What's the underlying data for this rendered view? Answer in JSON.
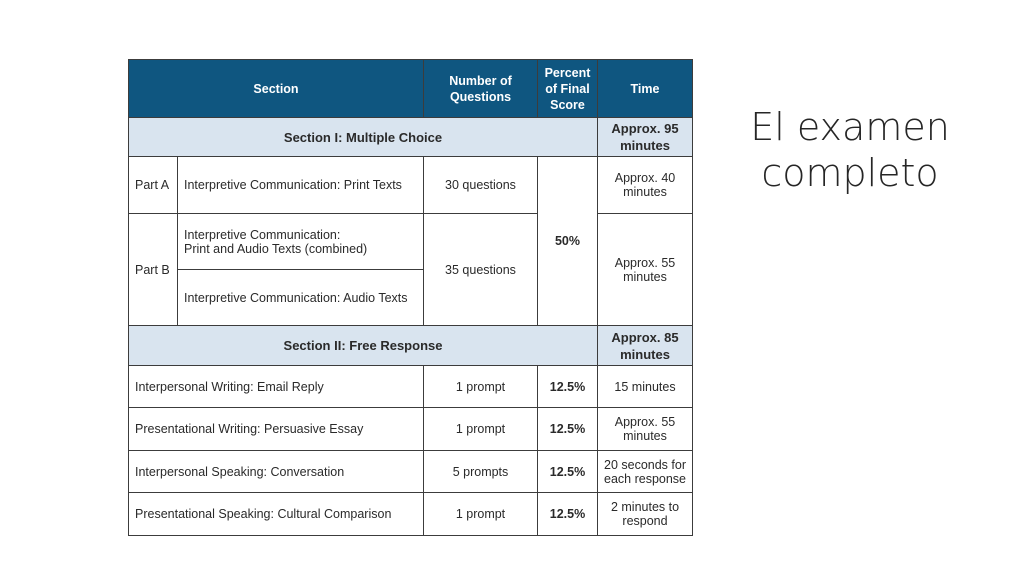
{
  "slide": {
    "title": "El examen\ncompleto"
  },
  "table": {
    "headers": {
      "section": "Section",
      "number_line1": "Number of",
      "number_line2": "Questions",
      "percent_line1": "Percent",
      "percent_line2": "of Final",
      "percent_line3": "Score",
      "time": "Time"
    },
    "section1": {
      "label": "Section I: Multiple Choice",
      "time_line1": "Approx. 95",
      "time_line2": "minutes",
      "percent": "50%",
      "part_a": {
        "part": "Part A",
        "task": "Interpretive Communication: Print Texts",
        "count": "30 questions",
        "time_line1": "Approx. 40",
        "time_line2": "minutes"
      },
      "part_b": {
        "part": "Part B",
        "task1_line1": "Interpretive Communication:",
        "task1_line2": "Print and Audio Texts (combined)",
        "task2": "Interpretive Communication: Audio Texts",
        "count": "35 questions",
        "time_line1": "Approx. 55",
        "time_line2": "minutes"
      }
    },
    "section2": {
      "label": "Section II: Free Response",
      "time_line1": "Approx. 85",
      "time_line2": "minutes",
      "rows": [
        {
          "task": "Interpersonal Writing: Email Reply",
          "count": "1 prompt",
          "percent": "12.5%",
          "time_line1": "15 minutes",
          "time_line2": ""
        },
        {
          "task": "Presentational Writing: Persuasive Essay",
          "count": "1 prompt",
          "percent": "12.5%",
          "time_line1": "Approx. 55",
          "time_line2": "minutes"
        },
        {
          "task": "Interpersonal Speaking: Conversation",
          "count": "5 prompts",
          "percent": "12.5%",
          "time_line1": "20 seconds for",
          "time_line2": "each response"
        },
        {
          "task": "Presentational Speaking: Cultural Comparison",
          "count": "1 prompt",
          "percent": "12.5%",
          "time_line1": "2 minutes to",
          "time_line2": "respond"
        }
      ]
    }
  }
}
